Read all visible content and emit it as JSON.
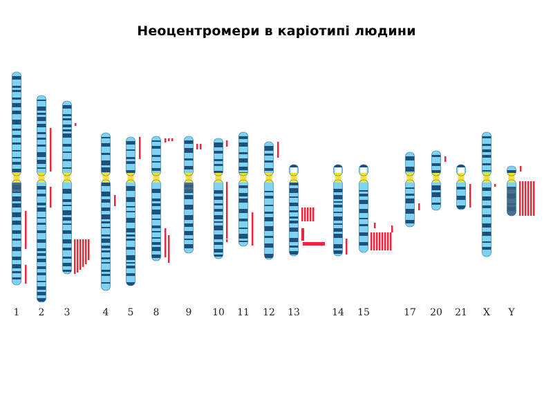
{
  "title": "Неоцентромери в каріотипі людини",
  "colors": {
    "band_light": "#7fd3f0",
    "band_dark": "#1d4f7a",
    "centromere": "#f2e23a",
    "heterochromatin": "#3d5e7e",
    "neocentromere": "#e8283c",
    "outline": "#2a6fa0"
  },
  "chromosomes": [
    {
      "label": "1"
    },
    {
      "label": "2"
    },
    {
      "label": "3"
    },
    {
      "label": "4"
    },
    {
      "label": "5"
    },
    {
      "label": "8"
    },
    {
      "label": "9"
    },
    {
      "label": "10"
    },
    {
      "label": "11"
    },
    {
      "label": "12"
    },
    {
      "label": "13"
    },
    {
      "label": "14"
    },
    {
      "label": "15"
    },
    {
      "label": "17"
    },
    {
      "label": "20"
    },
    {
      "label": "21"
    },
    {
      "label": "X"
    },
    {
      "label": "Y"
    }
  ]
}
